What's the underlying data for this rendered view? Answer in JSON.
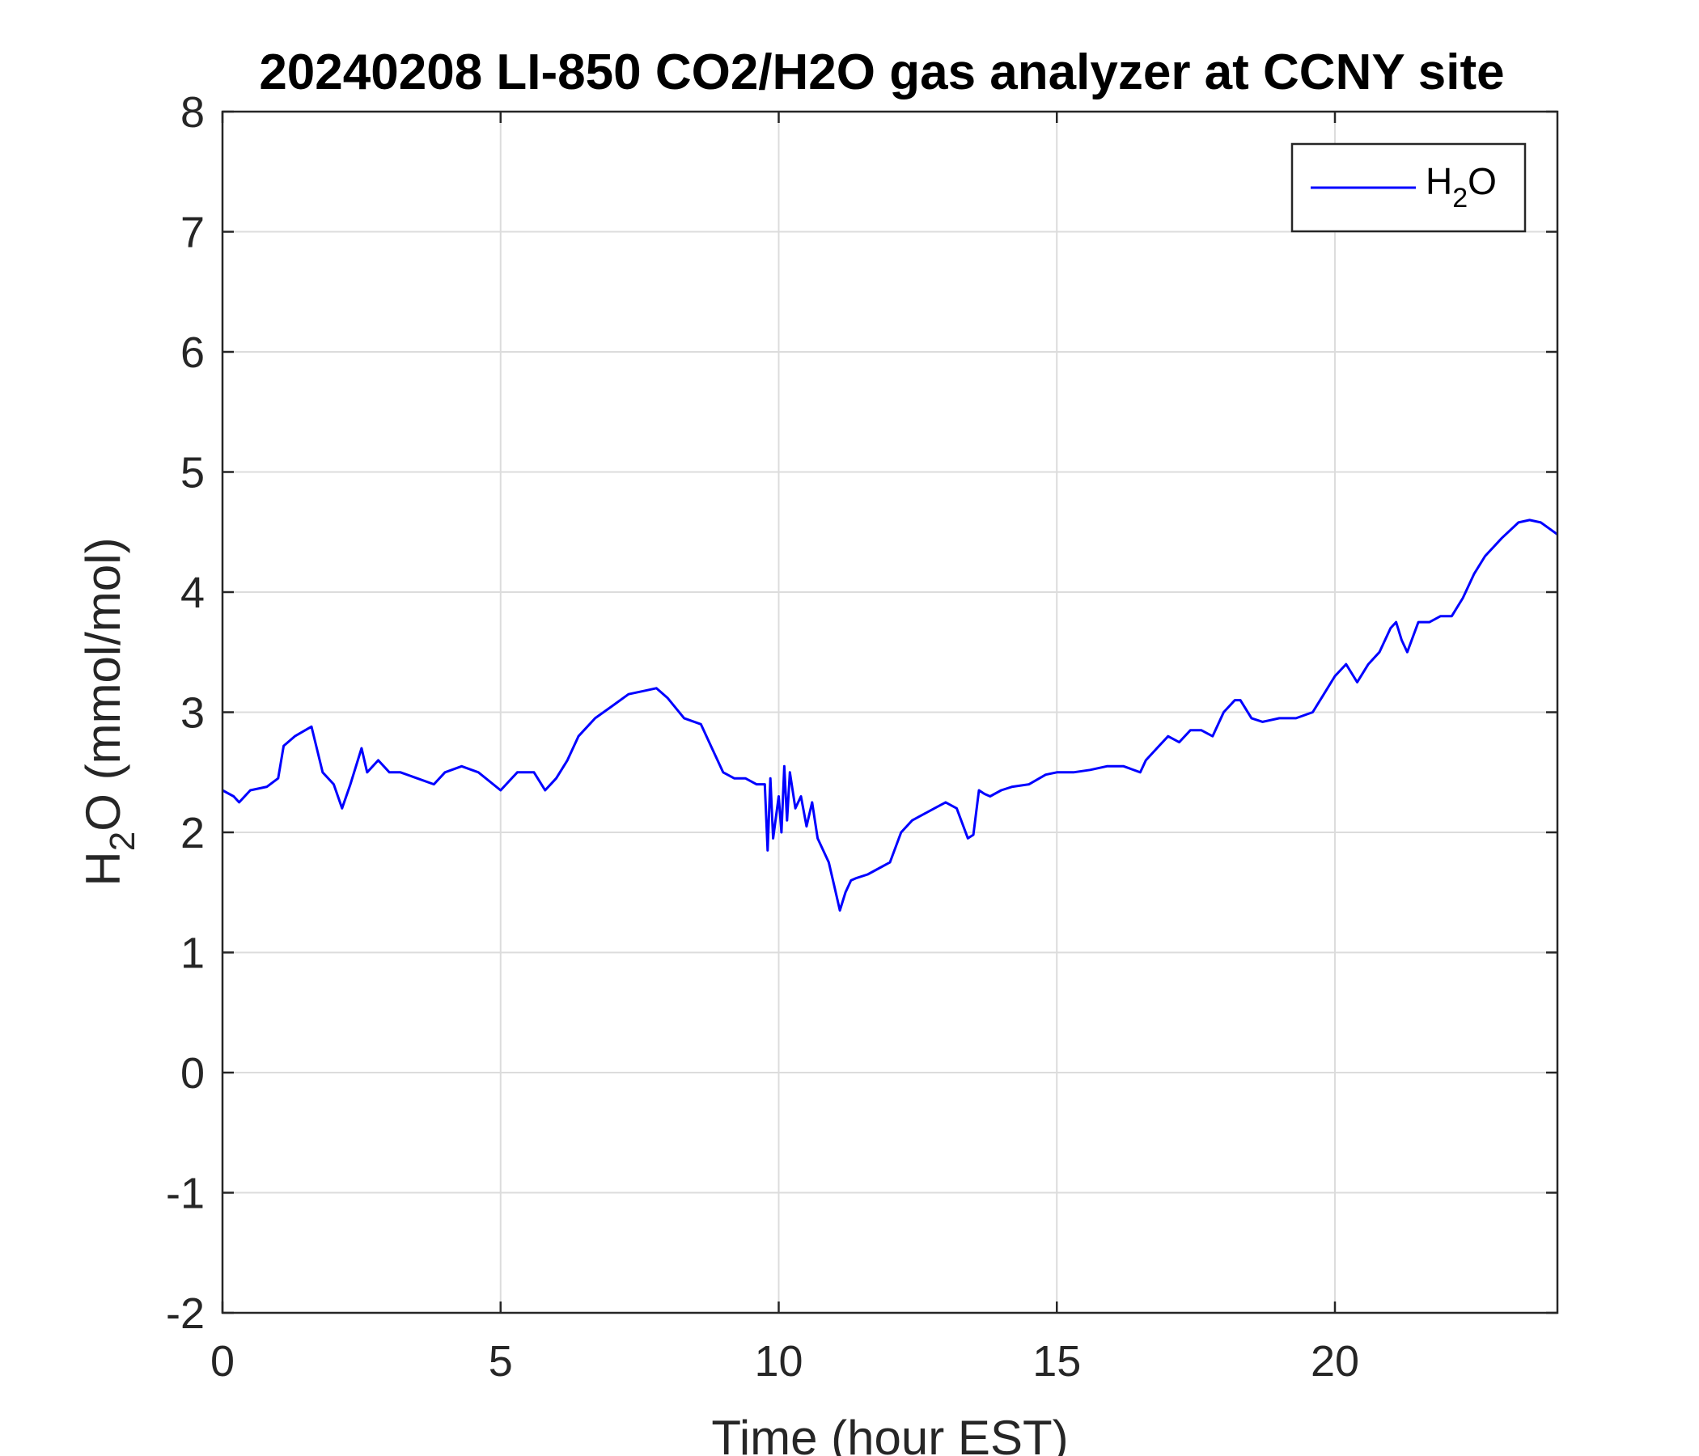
{
  "chart_data": {
    "type": "line",
    "title": "20240208 LI-850 CO2/H2O gas analyzer at CCNY site",
    "xlabel": "Time (hour EST)",
    "ylabel": {
      "base": "H",
      "sub": "2",
      "rest": "O (mmol/mol)"
    },
    "xlim": [
      0,
      24
    ],
    "ylim": [
      -2,
      8
    ],
    "xticks": [
      0,
      5,
      10,
      15,
      20
    ],
    "yticks": [
      -2,
      -1,
      0,
      1,
      2,
      3,
      4,
      5,
      6,
      7,
      8
    ],
    "grid": true,
    "legend_position": "top-right",
    "series": [
      {
        "name": {
          "base": "H",
          "sub": "2",
          "rest": "O"
        },
        "color": "#0000ff",
        "x": [
          0,
          0.2,
          0.3,
          0.5,
          0.8,
          1.0,
          1.1,
          1.3,
          1.6,
          1.8,
          2.0,
          2.15,
          2.3,
          2.5,
          2.6,
          2.8,
          3.0,
          3.2,
          3.5,
          3.8,
          4.0,
          4.3,
          4.6,
          5.0,
          5.3,
          5.6,
          5.8,
          6.0,
          6.2,
          6.4,
          6.7,
          7.0,
          7.3,
          7.6,
          7.8,
          8.0,
          8.3,
          8.6,
          8.8,
          9.0,
          9.2,
          9.4,
          9.6,
          9.75,
          9.8,
          9.85,
          9.9,
          10.0,
          10.05,
          10.1,
          10.15,
          10.2,
          10.3,
          10.4,
          10.5,
          10.6,
          10.7,
          10.8,
          10.9,
          11.0,
          11.1,
          11.2,
          11.3,
          11.4,
          11.6,
          11.8,
          12.0,
          12.2,
          12.4,
          12.6,
          12.8,
          13.0,
          13.2,
          13.4,
          13.5,
          13.6,
          13.7,
          13.8,
          14.0,
          14.2,
          14.5,
          14.8,
          15.0,
          15.3,
          15.6,
          15.9,
          16.2,
          16.5,
          16.6,
          16.8,
          17.0,
          17.2,
          17.4,
          17.6,
          17.8,
          18.0,
          18.2,
          18.3,
          18.5,
          18.7,
          19.0,
          19.3,
          19.6,
          19.8,
          20.0,
          20.2,
          20.4,
          20.6,
          20.8,
          21.0,
          21.1,
          21.2,
          21.3,
          21.5,
          21.7,
          21.9,
          22.1,
          22.3,
          22.5,
          22.7,
          23.0,
          23.3,
          23.5,
          23.7,
          24.0
        ],
        "y": [
          2.35,
          2.3,
          2.25,
          2.35,
          2.38,
          2.45,
          2.72,
          2.8,
          2.88,
          2.5,
          2.4,
          2.2,
          2.4,
          2.7,
          2.5,
          2.6,
          2.5,
          2.5,
          2.45,
          2.4,
          2.5,
          2.55,
          2.5,
          2.35,
          2.5,
          2.5,
          2.35,
          2.45,
          2.6,
          2.8,
          2.95,
          3.05,
          3.15,
          3.18,
          3.2,
          3.12,
          2.95,
          2.9,
          2.7,
          2.5,
          2.45,
          2.45,
          2.4,
          2.4,
          1.85,
          2.45,
          1.95,
          2.3,
          2.0,
          2.55,
          2.1,
          2.5,
          2.2,
          2.3,
          2.05,
          2.25,
          1.95,
          1.85,
          1.75,
          1.55,
          1.35,
          1.5,
          1.6,
          1.62,
          1.65,
          1.7,
          1.75,
          2.0,
          2.1,
          2.15,
          2.2,
          2.25,
          2.2,
          1.95,
          1.98,
          2.35,
          2.32,
          2.3,
          2.35,
          2.38,
          2.4,
          2.48,
          2.5,
          2.5,
          2.52,
          2.55,
          2.55,
          2.5,
          2.6,
          2.7,
          2.8,
          2.75,
          2.85,
          2.85,
          2.8,
          3.0,
          3.1,
          3.1,
          2.95,
          2.92,
          2.95,
          2.95,
          3.0,
          3.15,
          3.3,
          3.4,
          3.25,
          3.4,
          3.5,
          3.7,
          3.75,
          3.6,
          3.5,
          3.75,
          3.75,
          3.8,
          3.8,
          3.95,
          4.15,
          4.3,
          4.45,
          4.58,
          4.6,
          4.58,
          4.48
        ]
      }
    ]
  }
}
